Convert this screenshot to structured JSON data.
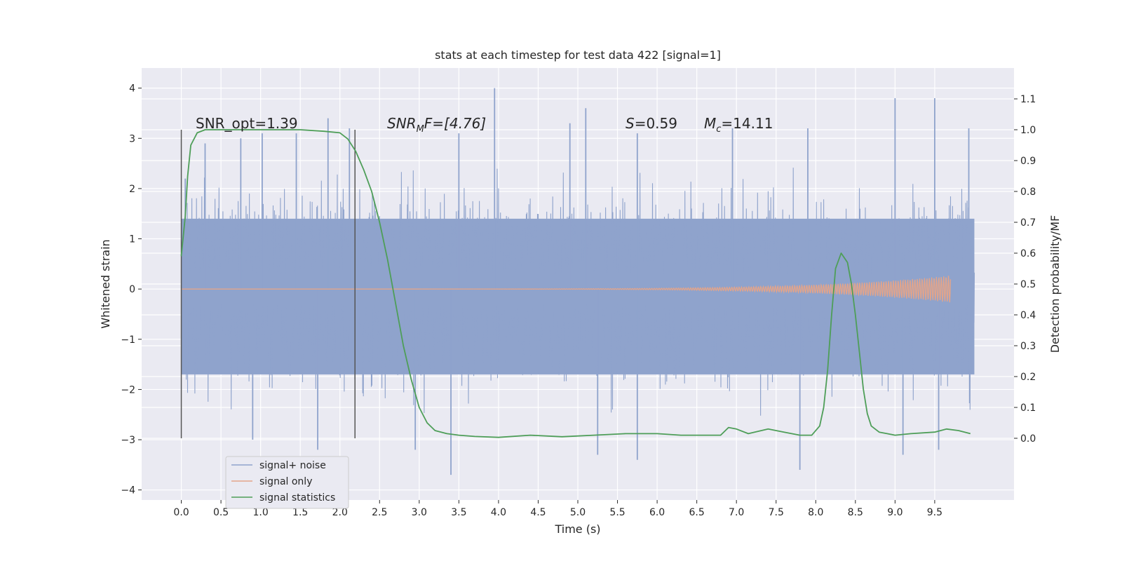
{
  "chart_data": {
    "type": "line",
    "title": "stats at each timestep for test data 422 [signal=1]",
    "xlabel": "Time (s)",
    "ylabel_left": "Whitened strain",
    "ylabel_right": "Detection probability/MF",
    "xlim": [
      -0.5,
      10.5
    ],
    "ylim_left": [
      -4.2,
      4.4
    ],
    "ylim_right": [
      -0.2,
      1.2
    ],
    "x_ticks": [
      "0.0",
      "0.5",
      "1.0",
      "1.5",
      "2.0",
      "2.5",
      "3.0",
      "3.5",
      "4.0",
      "4.5",
      "5.0",
      "5.5",
      "6.0",
      "6.5",
      "7.0",
      "7.5",
      "8.0",
      "8.5",
      "9.0",
      "9.5"
    ],
    "y_left_ticks": [
      "4",
      "3",
      "2",
      "1",
      "0",
      "−1",
      "−2",
      "−3",
      "−4"
    ],
    "y_right_ticks": [
      "1.1",
      "1.0",
      "0.9",
      "0.8",
      "0.7",
      "0.6",
      "0.5",
      "0.4",
      "0.3",
      "0.2",
      "0.1",
      "0.0"
    ],
    "grid": true,
    "legend_position": "lower-left",
    "annotations": {
      "snr_opt": "SNR_opt=1.39",
      "snr_mf_main": "SNR",
      "snr_mf_sub": "M",
      "snr_mf_tail": "F=[4.76]",
      "s_main": "S",
      "s_tail": "=0.59",
      "mc_main": "M",
      "mc_sub": "c",
      "mc_tail": "=14.11"
    },
    "vertical_markers": [
      0.0,
      2.19
    ],
    "series": [
      {
        "name": "signal+ noise",
        "color": "#8fa3cc",
        "axis": "left",
        "noise_band": [
          -1.7,
          1.4
        ],
        "t_range": [
          0.0,
          10.0
        ],
        "peaks": [
          [
            0.05,
            2.2
          ],
          [
            0.3,
            2.9
          ],
          [
            0.75,
            3.0
          ],
          [
            1.02,
            3.1
          ],
          [
            1.45,
            3.1
          ],
          [
            1.85,
            3.4
          ],
          [
            2.12,
            3.2
          ],
          [
            3.5,
            3.1
          ],
          [
            3.95,
            4.0
          ],
          [
            4.9,
            3.3
          ],
          [
            5.1,
            3.6
          ],
          [
            5.75,
            3.1
          ],
          [
            6.95,
            3.2
          ],
          [
            7.9,
            3.2
          ],
          [
            9.0,
            3.8
          ],
          [
            9.5,
            3.8
          ],
          [
            9.93,
            3.2
          ],
          [
            0.9,
            -3.0
          ],
          [
            1.72,
            -3.2
          ],
          [
            2.95,
            -3.2
          ],
          [
            3.4,
            -3.7
          ],
          [
            5.25,
            -3.3
          ],
          [
            5.75,
            -3.4
          ],
          [
            7.8,
            -3.6
          ],
          [
            9.1,
            -3.3
          ],
          [
            9.55,
            -3.2
          ]
        ]
      },
      {
        "name": "signal only",
        "color": "#e3a48a",
        "axis": "left",
        "t_range": [
          0.0,
          9.7
        ],
        "chirp_end_amplitude": 0.27
      },
      {
        "name": "signal statistics",
        "color": "#4e9e58",
        "axis": "right",
        "x": [
          0.0,
          0.05,
          0.08,
          0.12,
          0.2,
          0.3,
          0.5,
          1.0,
          1.5,
          1.8,
          2.0,
          2.1,
          2.2,
          2.3,
          2.4,
          2.5,
          2.6,
          2.7,
          2.8,
          2.9,
          3.0,
          3.1,
          3.2,
          3.35,
          3.5,
          3.7,
          4.0,
          4.4,
          4.8,
          5.2,
          5.6,
          6.0,
          6.3,
          6.5,
          6.7,
          6.8,
          6.9,
          7.0,
          7.15,
          7.4,
          7.6,
          7.8,
          7.95,
          8.05,
          8.1,
          8.15,
          8.2,
          8.25,
          8.32,
          8.4,
          8.45,
          8.5,
          8.55,
          8.6,
          8.65,
          8.7,
          8.8,
          8.9,
          9.0,
          9.2,
          9.5,
          9.65,
          9.8,
          9.95
        ],
        "values": [
          0.59,
          0.72,
          0.85,
          0.95,
          0.99,
          1.0,
          1.0,
          1.0,
          1.0,
          0.995,
          0.99,
          0.97,
          0.93,
          0.87,
          0.8,
          0.7,
          0.58,
          0.44,
          0.3,
          0.19,
          0.1,
          0.05,
          0.025,
          0.015,
          0.01,
          0.006,
          0.003,
          0.01,
          0.005,
          0.01,
          0.015,
          0.015,
          0.01,
          0.01,
          0.01,
          0.01,
          0.035,
          0.03,
          0.015,
          0.03,
          0.02,
          0.01,
          0.01,
          0.04,
          0.1,
          0.22,
          0.4,
          0.55,
          0.6,
          0.57,
          0.5,
          0.4,
          0.28,
          0.16,
          0.08,
          0.04,
          0.02,
          0.015,
          0.01,
          0.015,
          0.02,
          0.03,
          0.025,
          0.015
        ]
      }
    ]
  }
}
